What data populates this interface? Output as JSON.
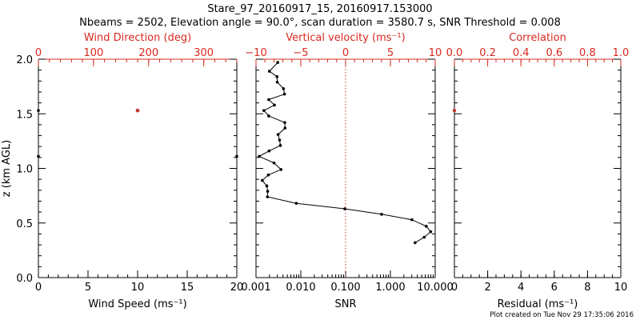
{
  "title_line1": "Stare_97_20160917_15, 20160917.153000",
  "title_line2": "Nbeams = 2502, Elevation angle = 90.0°, scan duration = 3580.7 s, SNR Threshold = 0.008",
  "footer": "Plot created on Tue Nov 29 17:35:06 2016",
  "colors": {
    "axis": "#000000",
    "red_axis": "#d8281e",
    "wind_points": "#c0392b"
  },
  "chart_data": [
    {
      "type": "scatter",
      "panel": "wind",
      "ylabel": "z (km AGL)",
      "y_ticks": [
        "0.0",
        "0.5",
        "1.0",
        "1.5",
        "2.0"
      ],
      "ylim": [
        0,
        2
      ],
      "xlabel": "Wind Speed (ms⁻¹)",
      "x_ticks": [
        "0",
        "5",
        "10",
        "15",
        "20"
      ],
      "xlim": [
        0,
        20
      ],
      "top_label": "Wind Direction (deg)",
      "top_ticks": [
        "0",
        "100",
        "200",
        "300"
      ],
      "top_lim": [
        0,
        360
      ],
      "speed_points": [
        {
          "speed": 0.0,
          "z": 1.53
        },
        {
          "speed": 0.0,
          "z": 1.11
        },
        {
          "speed": 20.0,
          "z": 1.11
        }
      ],
      "direction_points": [
        {
          "dir": 180,
          "z": 1.53
        }
      ]
    },
    {
      "type": "line",
      "panel": "velocity",
      "xlabel": "SNR",
      "x_ticks": [
        "0.001",
        "0.010",
        "0.100",
        "1.000",
        "10.000"
      ],
      "xlim": [
        0.001,
        10
      ],
      "xscale": "log",
      "top_label": "Vertical velocity (ms⁻¹)",
      "top_ticks": [
        "−10",
        "−5",
        "0",
        "5",
        "10"
      ],
      "top_lim": [
        -10,
        10
      ],
      "reference_line": {
        "snr": 0.1,
        "style": "dotted",
        "color": "#d8281e"
      },
      "points": [
        {
          "snr": 0.00306,
          "z": 1.97
        },
        {
          "snr": 0.00199,
          "z": 1.89
        },
        {
          "snr": 0.00295,
          "z": 1.84
        },
        {
          "snr": 0.00298,
          "z": 1.79
        },
        {
          "snr": 0.00411,
          "z": 1.73
        },
        {
          "snr": 0.00433,
          "z": 1.68
        },
        {
          "snr": 0.00192,
          "z": 1.63
        },
        {
          "snr": 0.00258,
          "z": 1.58
        },
        {
          "snr": 0.0015,
          "z": 1.53
        },
        {
          "snr": 0.00192,
          "z": 1.48
        },
        {
          "snr": 0.00439,
          "z": 1.42
        },
        {
          "snr": 0.00445,
          "z": 1.37
        },
        {
          "snr": 0.00311,
          "z": 1.31
        },
        {
          "snr": 0.00336,
          "z": 1.26
        },
        {
          "snr": 0.00351,
          "z": 1.21
        },
        {
          "snr": 0.00196,
          "z": 1.16
        },
        {
          "snr": 0.00118,
          "z": 1.11
        },
        {
          "snr": 0.00252,
          "z": 1.05
        },
        {
          "snr": 0.00362,
          "z": 0.99
        },
        {
          "snr": 0.00189,
          "z": 0.94
        },
        {
          "snr": 0.00138,
          "z": 0.89
        },
        {
          "snr": 0.00174,
          "z": 0.84
        },
        {
          "snr": 0.00182,
          "z": 0.79
        },
        {
          "snr": 0.0018,
          "z": 0.74
        },
        {
          "snr": 0.00794,
          "z": 0.68
        },
        {
          "snr": 0.0957,
          "z": 0.63
        },
        {
          "snr": 0.635,
          "z": 0.58
        },
        {
          "snr": 3.02,
          "z": 0.53
        },
        {
          "snr": 6.32,
          "z": 0.47
        },
        {
          "snr": 7.94,
          "z": 0.42
        },
        {
          "snr": 5.69,
          "z": 0.37
        },
        {
          "snr": 3.56,
          "z": 0.32
        }
      ]
    },
    {
      "type": "scatter",
      "panel": "correlation",
      "xlabel": "Residual (ms⁻¹)",
      "x_ticks": [
        "0",
        "2",
        "4",
        "6",
        "8",
        "10"
      ],
      "xlim": [
        0,
        10
      ],
      "top_label": "Correlation",
      "top_ticks": [
        "0.0",
        "0.2",
        "0.4",
        "0.6",
        "0.8",
        "1.0"
      ],
      "top_lim": [
        0,
        1
      ],
      "correlation_points": [
        {
          "corr": 0.0,
          "z": 1.53
        }
      ]
    }
  ]
}
